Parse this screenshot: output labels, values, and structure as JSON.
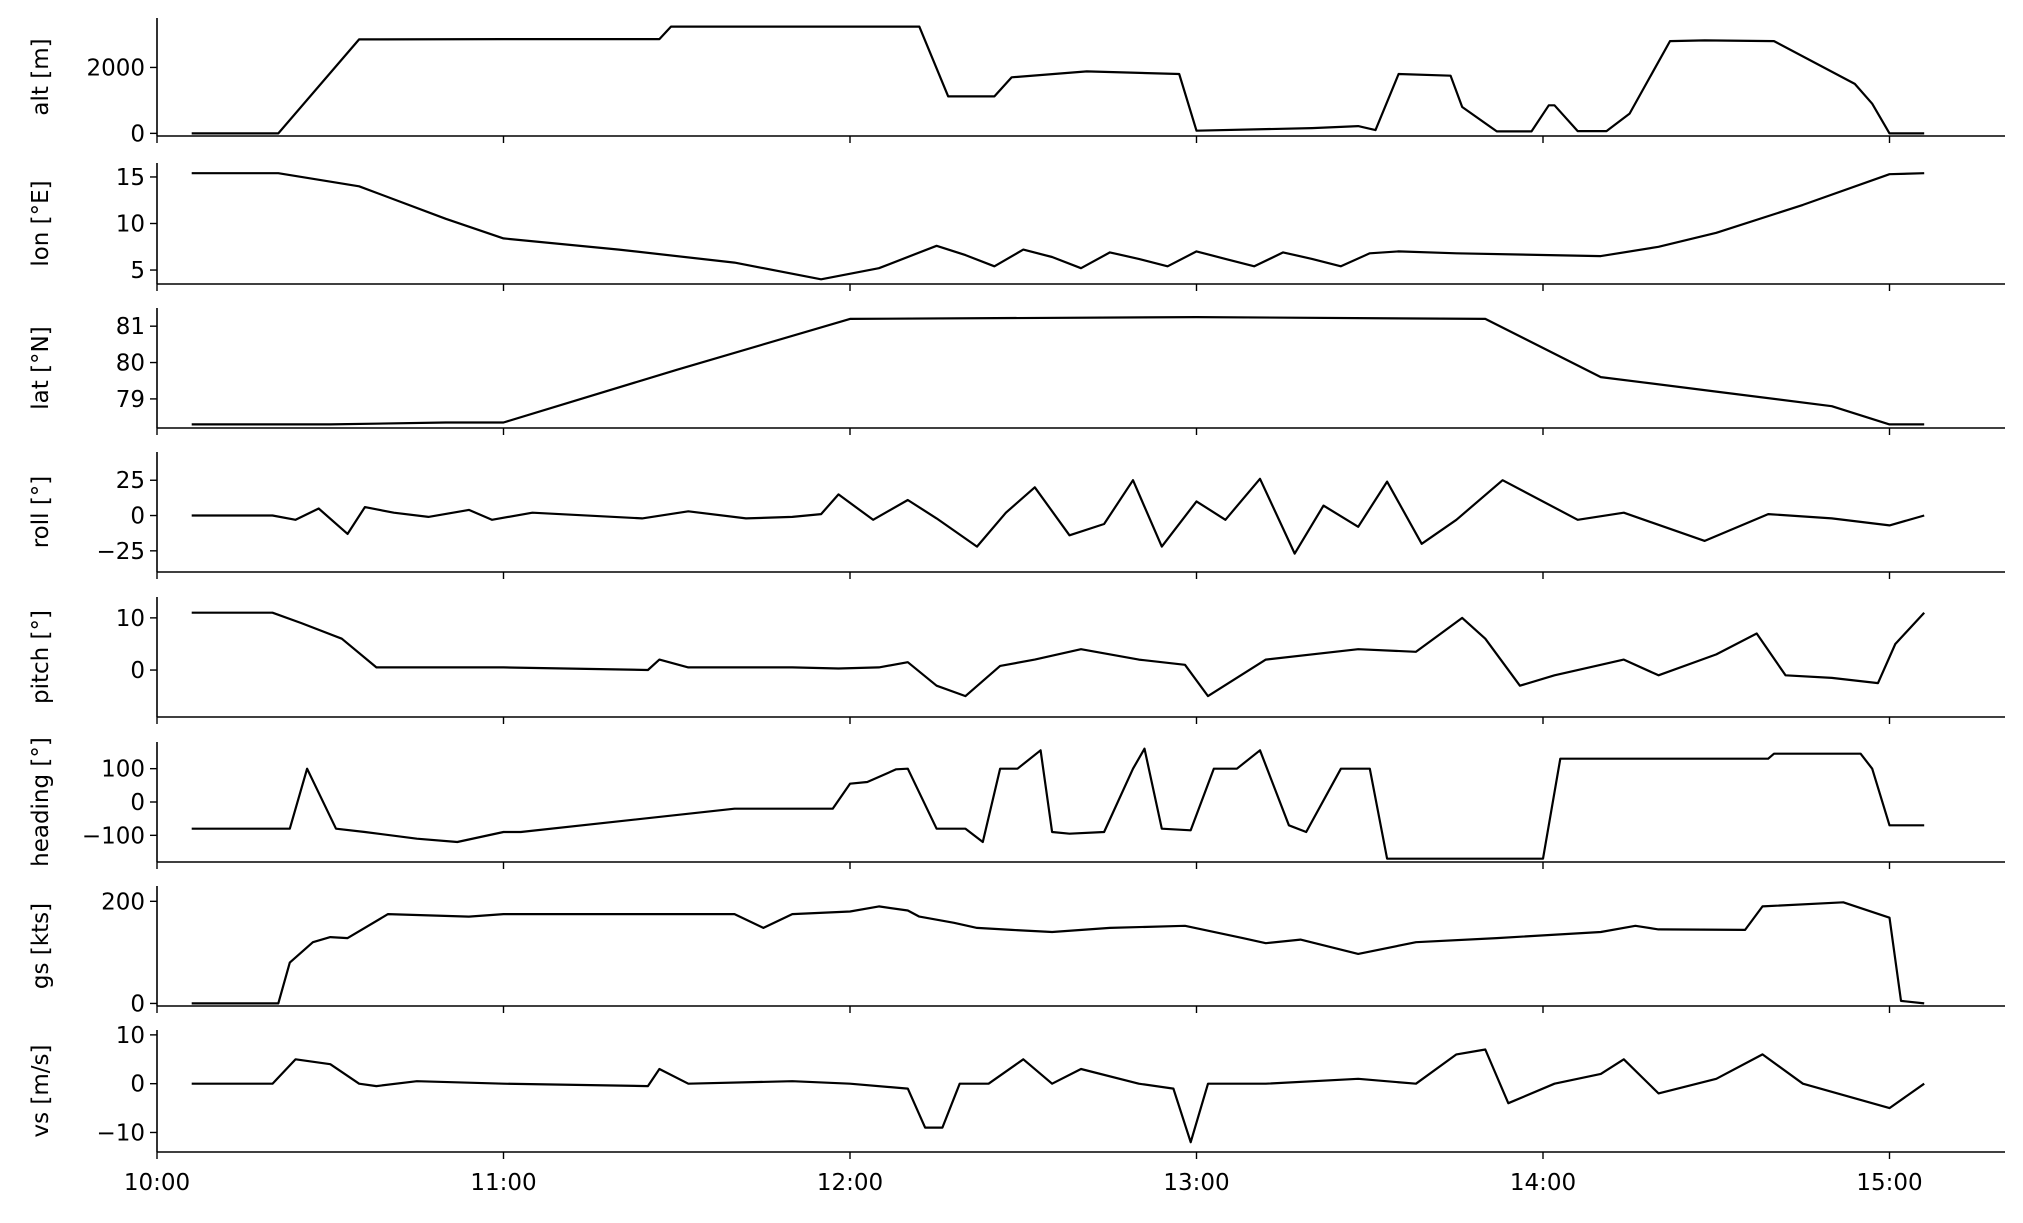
{
  "chart_data": {
    "type": "line",
    "shared_x_axis": {
      "unit": "time",
      "range": [
        "10:00",
        "15:20"
      ],
      "ticks": [
        "10:00",
        "11:00",
        "12:00",
        "13:00",
        "14:00",
        "15:00"
      ]
    },
    "panels": [
      {
        "ylabel": "alt [m]",
        "ylim": [
          -80,
          3500
        ],
        "yticks": [
          0,
          2000
        ],
        "yticklabels": [
          "0",
          "2000"
        ],
        "series": {
          "time": [
            "10:06",
            "10:21",
            "10:35",
            "11:00",
            "11:27",
            "11:29",
            "11:40",
            "12:00",
            "12:12",
            "12:17",
            "12:25",
            "12:28",
            "12:41",
            "12:57",
            "13:00",
            "13:20",
            "13:28",
            "13:31",
            "13:35",
            "13:44",
            "13:46",
            "13:52",
            "13:58",
            "14:01",
            "14:02",
            "14:06",
            "14:11",
            "14:15",
            "14:22",
            "14:28",
            "14:40",
            "14:54",
            "14:57",
            "15:00",
            "15:06"
          ],
          "values": [
            0,
            0,
            2850,
            2860,
            2860,
            3240,
            3240,
            3240,
            3240,
            1120,
            1120,
            1700,
            1880,
            1800,
            80,
            160,
            220,
            100,
            1800,
            1750,
            800,
            60,
            60,
            850,
            850,
            70,
            70,
            600,
            2800,
            2820,
            2800,
            1500,
            900,
            0,
            0
          ]
        }
      },
      {
        "ylabel": "lon [°E]",
        "ylim": [
          3.5,
          16.5
        ],
        "yticks": [
          5,
          10,
          15
        ],
        "yticklabels": [
          "5",
          "10",
          "15"
        ],
        "series": {
          "time": [
            "10:06",
            "10:21",
            "10:35",
            "10:50",
            "11:00",
            "11:20",
            "11:40",
            "11:55",
            "12:05",
            "12:15",
            "12:20",
            "12:25",
            "12:30",
            "12:35",
            "12:40",
            "12:45",
            "12:50",
            "12:55",
            "13:00",
            "13:05",
            "13:10",
            "13:15",
            "13:20",
            "13:25",
            "13:30",
            "13:35",
            "13:45",
            "14:10",
            "14:20",
            "14:30",
            "14:45",
            "15:00",
            "15:06"
          ],
          "values": [
            15.4,
            15.4,
            14.0,
            10.5,
            8.4,
            7.2,
            5.8,
            4.0,
            5.2,
            7.6,
            6.6,
            5.4,
            7.2,
            6.4,
            5.2,
            6.9,
            6.2,
            5.4,
            7.0,
            6.2,
            5.4,
            6.9,
            6.2,
            5.4,
            6.8,
            7.0,
            6.8,
            6.5,
            7.5,
            9.0,
            12.0,
            15.3,
            15.4
          ]
        }
      },
      {
        "ylabel": "lat [°N]",
        "ylim": [
          78.2,
          81.5
        ],
        "yticks": [
          79,
          80,
          81
        ],
        "yticklabels": [
          "79",
          "80",
          "81"
        ],
        "series": {
          "time": [
            "10:06",
            "10:30",
            "10:50",
            "11:00",
            "11:30",
            "12:00",
            "13:00",
            "13:50",
            "14:10",
            "14:30",
            "14:50",
            "15:00",
            "15:06"
          ],
          "values": [
            78.3,
            78.3,
            78.35,
            78.35,
            79.8,
            81.2,
            81.25,
            81.2,
            79.6,
            79.2,
            78.8,
            78.3,
            78.3
          ]
        }
      },
      {
        "ylabel": "roll [°]",
        "ylim": [
          -40,
          45
        ],
        "yticks": [
          -25,
          0,
          25
        ],
        "yticklabels": [
          "−25",
          "0",
          "25"
        ],
        "series": {
          "time": [
            "10:06",
            "10:20",
            "10:24",
            "10:28",
            "10:33",
            "10:36",
            "10:41",
            "10:47",
            "10:54",
            "10:58",
            "11:05",
            "11:24",
            "11:32",
            "11:42",
            "11:50",
            "11:55",
            "11:58",
            "12:04",
            "12:10",
            "12:15",
            "12:22",
            "12:27",
            "12:32",
            "12:38",
            "12:44",
            "12:49",
            "12:54",
            "13:00",
            "13:05",
            "13:11",
            "13:17",
            "13:22",
            "13:28",
            "13:33",
            "13:39",
            "13:45",
            "13:53",
            "14:06",
            "14:14",
            "14:28",
            "14:39",
            "14:50",
            "15:00",
            "15:06"
          ],
          "values": [
            0,
            0,
            -3,
            5,
            -13,
            6,
            2,
            -1,
            4,
            -3,
            2,
            -2,
            3,
            -2,
            -1,
            1,
            15,
            -3,
            11,
            -2,
            -22,
            2,
            20,
            -14,
            -6,
            25,
            -22,
            10,
            -3,
            26,
            -27,
            7,
            -8,
            24,
            -20,
            -3,
            25,
            -3,
            2,
            -18,
            1,
            -2,
            -7,
            0
          ]
        }
      },
      {
        "ylabel": "pitch [°]",
        "ylim": [
          -9,
          14
        ],
        "yticks": [
          0,
          10
        ],
        "yticklabels": [
          "0",
          "10"
        ],
        "series": {
          "time": [
            "10:06",
            "10:20",
            "10:25",
            "10:32",
            "10:38",
            "10:45",
            "11:00",
            "11:25",
            "11:27",
            "11:32",
            "11:50",
            "11:58",
            "12:05",
            "12:10",
            "12:15",
            "12:20",
            "12:26",
            "12:32",
            "12:40",
            "12:50",
            "12:58",
            "13:02",
            "13:12",
            "13:28",
            "13:38",
            "13:46",
            "13:50",
            "13:56",
            "14:02",
            "14:10",
            "14:14",
            "14:20",
            "14:30",
            "14:37",
            "14:42",
            "14:50",
            "14:58",
            "15:01",
            "15:06"
          ],
          "values": [
            11,
            11,
            9,
            6,
            0.5,
            0.5,
            0.5,
            0,
            2,
            0.5,
            0.5,
            0.3,
            0.5,
            1.5,
            -3,
            -5,
            0.8,
            2,
            4,
            2,
            1,
            -5,
            2,
            4,
            3.5,
            10,
            6,
            -3,
            -1,
            1,
            2,
            -1,
            3,
            7,
            -1,
            -1.5,
            -2.5,
            5,
            11
          ]
        }
      },
      {
        "ylabel": "heading [°]",
        "ylim": [
          -180,
          180
        ],
        "yticks": [
          -100,
          0,
          100
        ],
        "yticklabels": [
          "−100",
          "0",
          "100"
        ],
        "series": {
          "time": [
            "10:06",
            "10:20",
            "10:23",
            "10:26",
            "10:31",
            "10:36",
            "10:45",
            "10:52",
            "11:00",
            "11:03",
            "11:40",
            "11:55",
            "11:57",
            "12:00",
            "12:03",
            "12:08",
            "12:10",
            "12:15",
            "12:20",
            "12:23",
            "12:26",
            "12:29",
            "12:33",
            "12:35",
            "12:38",
            "12:44",
            "12:49",
            "12:51",
            "12:54",
            "12:59",
            "13:03",
            "13:07",
            "13:11",
            "13:16",
            "13:19",
            "13:25",
            "13:30",
            "13:33",
            "13:37",
            "13:40",
            "13:42",
            "14:00",
            "14:03",
            "14:05",
            "14:20",
            "14:39",
            "14:40",
            "14:55",
            "14:57",
            "15:00",
            "15:06"
          ],
          "values": [
            -80,
            -80,
            -80,
            100,
            -80,
            -90,
            -110,
            -120,
            -90,
            -90,
            -20,
            -20,
            -20,
            55,
            60,
            98,
            100,
            -80,
            -80,
            -120,
            100,
            100,
            155,
            -90,
            -95,
            -90,
            100,
            160,
            -80,
            -85,
            100,
            100,
            155,
            -70,
            -90,
            100,
            100,
            -170,
            -170,
            -170,
            -170,
            -170,
            130,
            130,
            130,
            130,
            145,
            145,
            100,
            -70,
            -70
          ]
        }
      },
      {
        "ylabel": "gs [kts]",
        "ylim": [
          -5,
          230
        ],
        "yticks": [
          0,
          200
        ],
        "yticklabels": [
          "0",
          "200"
        ],
        "series": {
          "time": [
            "10:06",
            "10:18",
            "10:21",
            "10:23",
            "10:27",
            "10:30",
            "10:33",
            "10:40",
            "10:54",
            "11:00",
            "11:03",
            "11:40",
            "11:45",
            "11:50",
            "12:00",
            "12:05",
            "12:10",
            "12:12",
            "12:18",
            "12:22",
            "12:28",
            "12:35",
            "12:45",
            "12:58",
            "13:08",
            "13:12",
            "13:18",
            "13:28",
            "13:38",
            "13:52",
            "14:10",
            "14:16",
            "14:20",
            "14:35",
            "14:38",
            "14:52",
            "15:00",
            "15:02",
            "15:06"
          ],
          "values": [
            0,
            0,
            0,
            80,
            120,
            130,
            128,
            175,
            170,
            175,
            175,
            175,
            148,
            175,
            180,
            190,
            182,
            170,
            158,
            148,
            144,
            140,
            148,
            152,
            128,
            118,
            125,
            97,
            120,
            128,
            140,
            152,
            145,
            144,
            190,
            198,
            168,
            5,
            0
          ]
        }
      },
      {
        "ylabel": "vs [m/s]",
        "ylim": [
          -14,
          11
        ],
        "yticks": [
          -10,
          0,
          10
        ],
        "yticklabels": [
          "−10",
          "0",
          "10"
        ],
        "series": {
          "time": [
            "10:06",
            "10:20",
            "10:24",
            "10:30",
            "10:35",
            "10:38",
            "10:45",
            "11:00",
            "11:25",
            "11:27",
            "11:32",
            "11:50",
            "12:00",
            "12:10",
            "12:13",
            "12:16",
            "12:19",
            "12:24",
            "12:30",
            "12:35",
            "12:40",
            "12:50",
            "12:56",
            "12:59",
            "13:02",
            "13:12",
            "13:28",
            "13:38",
            "13:45",
            "13:50",
            "13:54",
            "14:02",
            "14:10",
            "14:14",
            "14:20",
            "14:30",
            "14:38",
            "14:45",
            "15:00",
            "15:06"
          ],
          "values": [
            0,
            0,
            5,
            4,
            0,
            -0.5,
            0.5,
            0,
            -0.5,
            3,
            0,
            0.5,
            0,
            -1,
            -9,
            -9,
            0,
            0,
            5,
            0,
            3,
            0,
            -1,
            -12,
            0,
            0,
            1,
            0,
            6,
            7,
            -4,
            0,
            2,
            5,
            -2,
            1,
            6,
            0,
            -5,
            0
          ]
        }
      }
    ]
  }
}
